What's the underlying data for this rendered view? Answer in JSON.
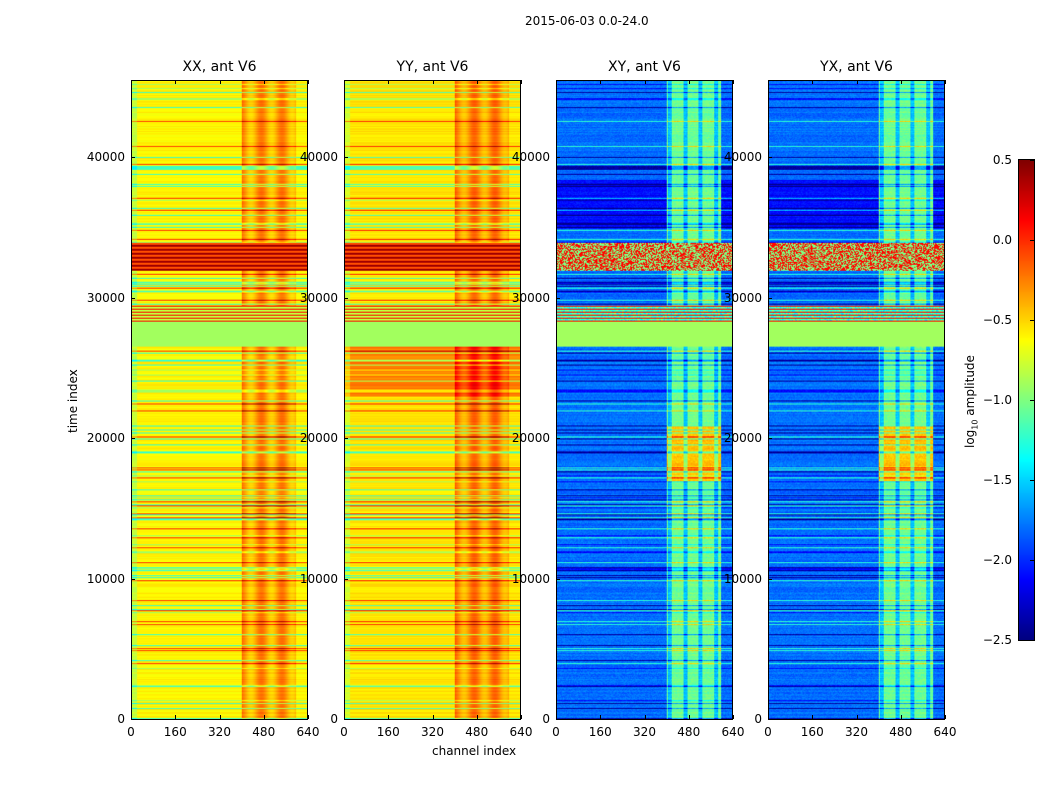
{
  "chart_data": {
    "type": "heatmap",
    "title": "2015-06-03 0.0-24.0",
    "xlabel": "channel index",
    "ylabel": "time index",
    "xlim": [
      0,
      640
    ],
    "ylim": [
      0,
      45500
    ],
    "xticks": [
      "0",
      "160",
      "320",
      "480",
      "640"
    ],
    "yticks": [
      "0",
      "10000",
      "20000",
      "30000",
      "40000"
    ],
    "colormap": "jet",
    "panels": [
      {
        "title": "XX, ant V6",
        "kind": "auto",
        "base_level": -0.6,
        "rfi_channel_range": [
          400,
          600
        ]
      },
      {
        "title": "YY, ant V6",
        "kind": "auto",
        "base_level": -0.55,
        "rfi_channel_range": [
          400,
          600
        ]
      },
      {
        "title": "XY, ant V6",
        "kind": "cross",
        "base_level": -1.8,
        "rfi_channel_range": [
          400,
          600
        ]
      },
      {
        "title": "YX, ant V6",
        "kind": "cross",
        "base_level": -1.8,
        "rfi_channel_range": [
          400,
          600
        ]
      }
    ],
    "features": [
      {
        "time_range": [
          26600,
          28400
        ],
        "level": -0.9,
        "note": "flat flagged band"
      },
      {
        "time_range": [
          32000,
          34000
        ],
        "level": 0.4,
        "note": "high amplitude stripes"
      }
    ],
    "colorbar": {
      "label": "log10 amplitude",
      "range": [
        -2.5,
        0.5
      ],
      "ticks": [
        "0.5",
        "0.0",
        "−0.5",
        "−1.0",
        "−1.5",
        "−2.0",
        "−2.5"
      ]
    }
  }
}
